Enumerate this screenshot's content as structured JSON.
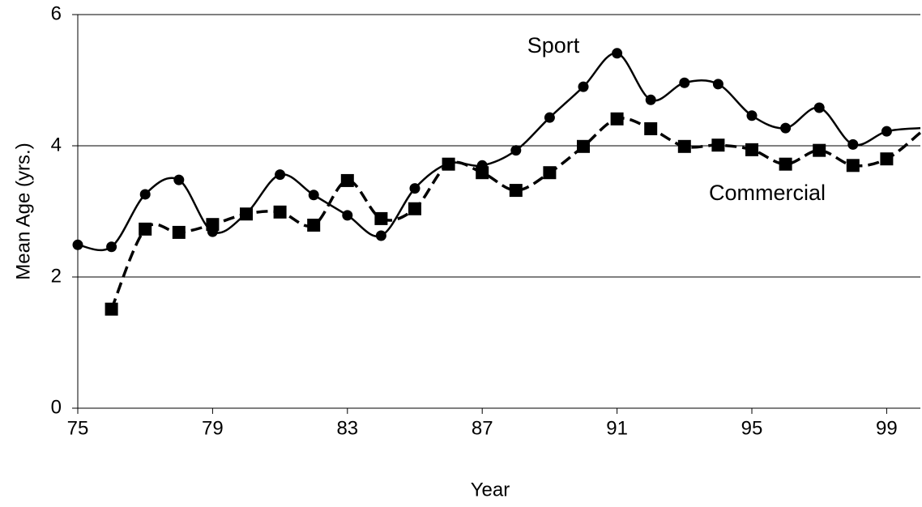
{
  "chart_data": {
    "type": "line",
    "x_label": "Year",
    "y_label": "Mean Age (yrs.)",
    "x": [
      75,
      76,
      77,
      78,
      79,
      80,
      81,
      82,
      83,
      84,
      85,
      86,
      87,
      88,
      89,
      90,
      91,
      92,
      93,
      94,
      95,
      96,
      97,
      98,
      99,
      100
    ],
    "series": [
      {
        "name": "Sport",
        "color": "#000000",
        "marker": "circle",
        "dash": "solid",
        "values": [
          2.49,
          2.46,
          3.26,
          3.48,
          2.69,
          2.97,
          3.56,
          3.25,
          2.94,
          2.63,
          3.35,
          3.73,
          3.7,
          3.93,
          4.43,
          4.9,
          5.41,
          4.7,
          4.96,
          4.94,
          4.46,
          4.27,
          4.58,
          4.02,
          4.22,
          4.27
        ]
      },
      {
        "name": "Commercial",
        "color": "#000000",
        "marker": "square",
        "dash": "dashed",
        "values": [
          null,
          1.51,
          2.73,
          2.68,
          2.8,
          2.96,
          2.99,
          2.79,
          3.47,
          2.89,
          3.04,
          3.72,
          3.59,
          3.32,
          3.59,
          3.99,
          4.41,
          4.26,
          3.99,
          4.01,
          3.94,
          3.72,
          3.93,
          3.7,
          3.8,
          4.2
        ]
      }
    ],
    "xlim": [
      75,
      100
    ],
    "xticks": [
      75,
      79,
      83,
      87,
      91,
      95,
      99
    ],
    "ylim": [
      0,
      6
    ],
    "yticks": [
      0,
      2,
      4,
      6
    ],
    "grid": true
  }
}
